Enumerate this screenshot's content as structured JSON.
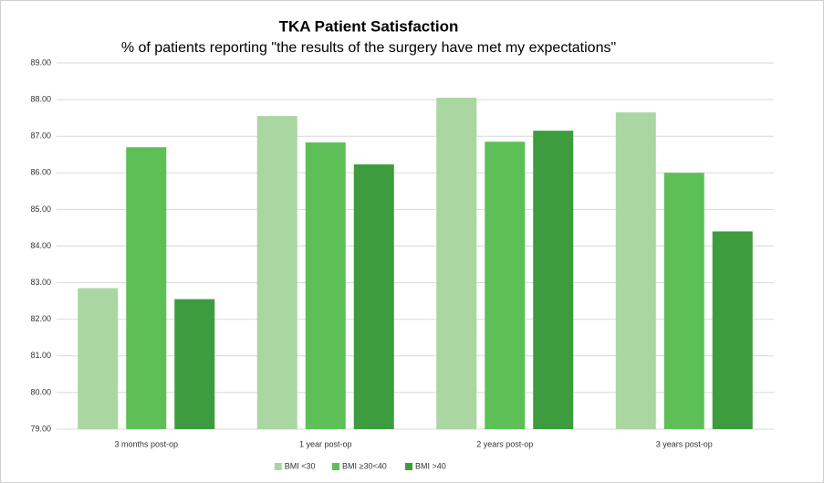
{
  "chart_data": {
    "type": "bar",
    "title": "TKA Patient Satisfaction",
    "subtitle": "% of patients reporting \"the results of the surgery have met my expectations\"",
    "categories": [
      "3 months post-op",
      "1 year post-op",
      "2 years post-op",
      "3 years post-op"
    ],
    "series": [
      {
        "name": "BMI <30",
        "color": "#a9d6a1",
        "values": [
          82.85,
          87.55,
          88.05,
          87.65
        ]
      },
      {
        "name": "BMI ≥30<40",
        "color": "#5cc056",
        "values": [
          86.7,
          86.83,
          86.85,
          86.0
        ]
      },
      {
        "name": "BMI >40",
        "color": "#3d9c3d",
        "values": [
          82.55,
          86.23,
          87.15,
          84.4
        ]
      }
    ],
    "ylim": [
      79,
      89
    ],
    "yticks": [
      {
        "value": 79,
        "label": "79.00"
      },
      {
        "value": 80,
        "label": "80.00"
      },
      {
        "value": 81,
        "label": "81.00"
      },
      {
        "value": 82,
        "label": "82.00"
      },
      {
        "value": 83,
        "label": "83.00"
      },
      {
        "value": 84,
        "label": "84.00"
      },
      {
        "value": 85,
        "label": "85.00"
      },
      {
        "value": 86,
        "label": "86.00"
      },
      {
        "value": 87,
        "label": "87.00"
      },
      {
        "value": 88,
        "label": "88.00"
      },
      {
        "value": 89,
        "label": "89.00"
      }
    ],
    "grid": true,
    "legend": "bottom"
  }
}
